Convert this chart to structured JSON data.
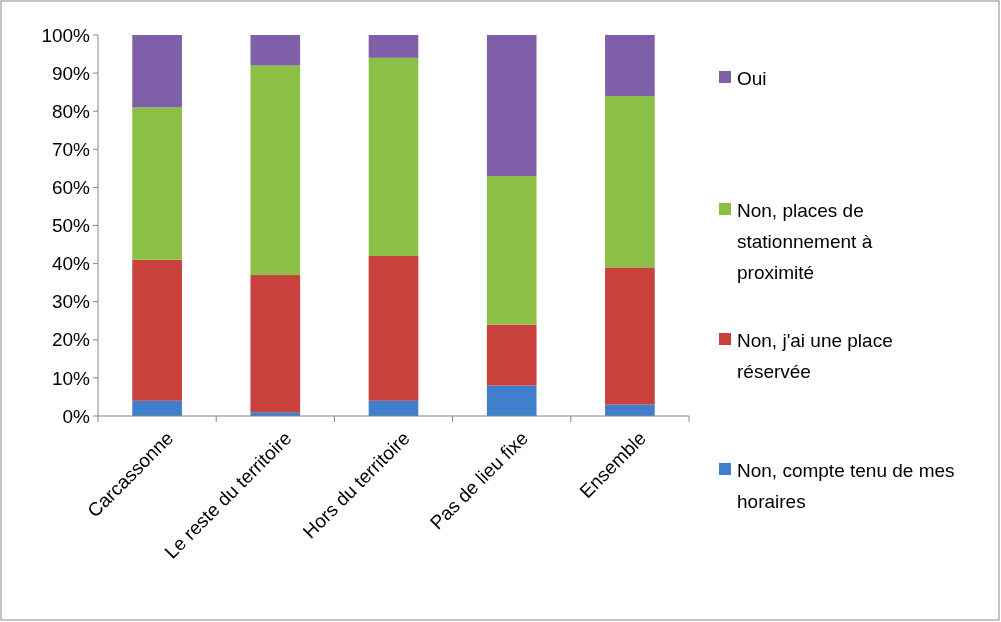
{
  "chart_data": {
    "type": "bar",
    "stacked": true,
    "categories": [
      "Carcassonne",
      "Le reste du territoire",
      "Hors du territoire",
      "Pas de lieu fixe",
      "Ensemble"
    ],
    "series": [
      {
        "name": "Non, compte tenu de mes horaires",
        "color": "#3f7fcc",
        "values": [
          4,
          1,
          4,
          8,
          3
        ]
      },
      {
        "name": "Non, j'ai une place réservée",
        "color": "#c9413d",
        "values": [
          37,
          36,
          38,
          16,
          36
        ]
      },
      {
        "name": "Non, places de stationnement à proximité",
        "color": "#8cbf45",
        "values": [
          40,
          55,
          52,
          39,
          45
        ]
      },
      {
        "name": "Oui",
        "color": "#7f5fa8",
        "values": [
          19,
          8,
          6,
          37,
          16
        ]
      }
    ],
    "ylim": [
      0,
      100
    ],
    "yticks": [
      {
        "value": 0,
        "label": "0%"
      },
      {
        "value": 10,
        "label": "10%"
      },
      {
        "value": 20,
        "label": "20%"
      },
      {
        "value": 30,
        "label": "30%"
      },
      {
        "value": 40,
        "label": "40%"
      },
      {
        "value": 50,
        "label": "50%"
      },
      {
        "value": 60,
        "label": "60%"
      },
      {
        "value": 70,
        "label": "70%"
      },
      {
        "value": 80,
        "label": "80%"
      },
      {
        "value": 90,
        "label": "90%"
      },
      {
        "value": 100,
        "label": "100%"
      }
    ],
    "legend": "right",
    "grid": false
  }
}
